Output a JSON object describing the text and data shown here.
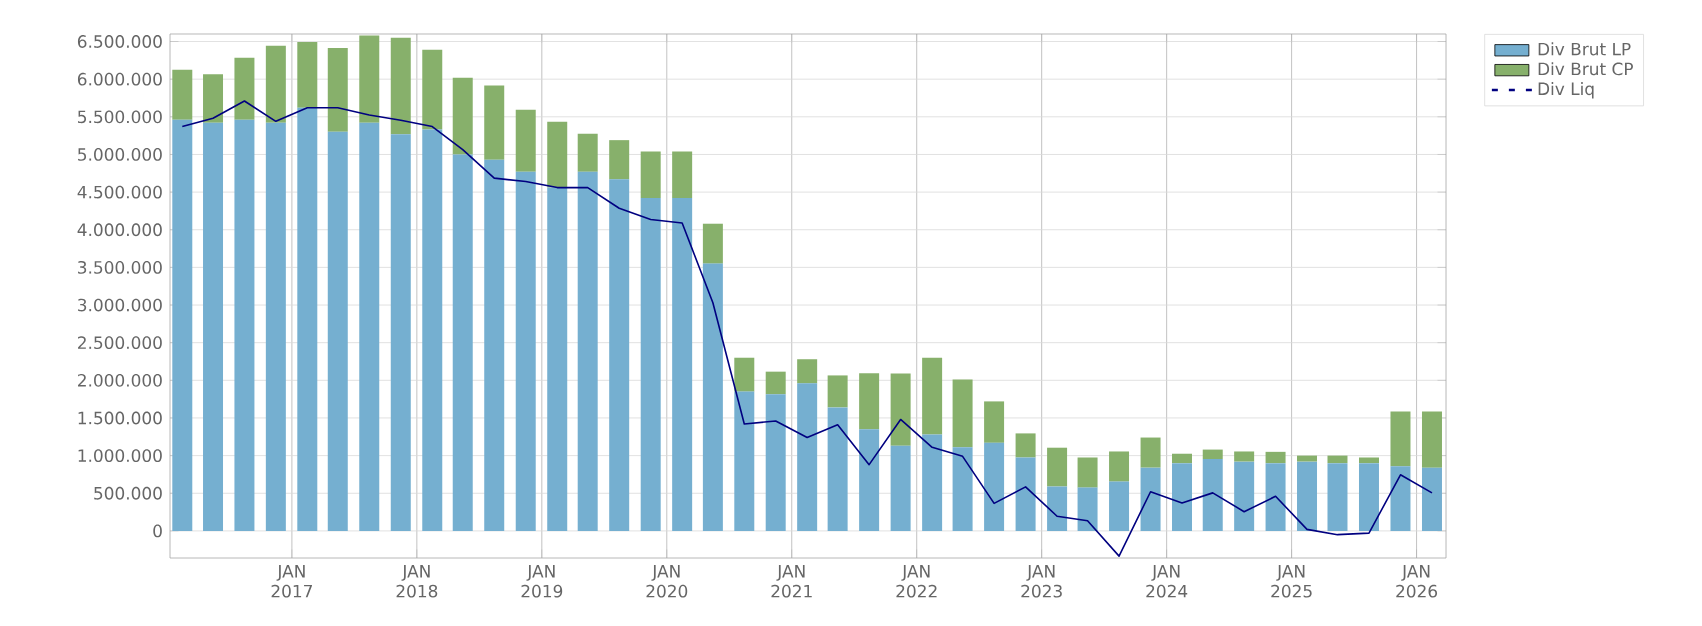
{
  "chart_data": {
    "type": "bar",
    "stacked": true,
    "grid": true,
    "legend": "top right",
    "x": [
      "2016-02-15",
      "2016-05-15",
      "2016-08-15",
      "2016-11-15",
      "2017-02-15",
      "2017-05-15",
      "2017-08-15",
      "2017-11-15",
      "2018-02-15",
      "2018-05-15",
      "2018-08-15",
      "2018-11-15",
      "2019-02-15",
      "2019-05-15",
      "2019-08-15",
      "2019-11-15",
      "2020-02-15",
      "2020-05-15",
      "2020-08-15",
      "2020-11-15",
      "2021-02-15",
      "2021-05-15",
      "2021-08-15",
      "2021-11-15",
      "2022-02-15",
      "2022-05-15",
      "2022-08-15",
      "2022-11-15",
      "2023-02-15",
      "2023-05-15",
      "2023-08-15",
      "2023-11-15",
      "2024-02-15",
      "2024-05-15",
      "2024-08-15",
      "2024-11-15",
      "2025-02-15",
      "2025-05-15",
      "2025-08-15",
      "2025-11-15",
      "2026-02-15"
    ],
    "xlim": [
      "2016-01-10",
      "2026-03-28"
    ],
    "xticks": [
      {
        "value": "2017-01-01",
        "label": "JAN 2017"
      },
      {
        "value": "2018-01-01",
        "label": "JAN 2018"
      },
      {
        "value": "2019-01-01",
        "label": "JAN 2019"
      },
      {
        "value": "2020-01-01",
        "label": "JAN 2020"
      },
      {
        "value": "2021-01-01",
        "label": "JAN 2021"
      },
      {
        "value": "2022-01-01",
        "label": "JAN 2022"
      },
      {
        "value": "2023-01-01",
        "label": "JAN 2023"
      },
      {
        "value": "2024-01-01",
        "label": "JAN 2024"
      },
      {
        "value": "2025-01-01",
        "label": "JAN 2025"
      },
      {
        "value": "2026-01-01",
        "label": "JAN 2026"
      }
    ],
    "ylim": [
      -360000,
      6600000
    ],
    "yticks": [
      0,
      {
        "value": 500000,
        "label": "500.000"
      },
      {
        "value": 1000000,
        "label": "1.000.000"
      },
      {
        "value": 1500000,
        "label": "1.500.000"
      },
      {
        "value": 2000000,
        "label": "2.000.000"
      },
      {
        "value": 2500000,
        "label": "2.500.000"
      },
      {
        "value": 3000000,
        "label": "3.000.000"
      },
      {
        "value": 3500000,
        "label": "3.500.000"
      },
      {
        "value": 4000000,
        "label": "4.000.000"
      },
      {
        "value": 4500000,
        "label": "4.500.000"
      },
      {
        "value": 5000000,
        "label": "5.000.000"
      },
      {
        "value": 5500000,
        "label": "5.500.000"
      },
      {
        "value": 6000000,
        "label": "6.000.000"
      },
      {
        "value": 6500000,
        "label": "6.500.000"
      }
    ],
    "series": [
      {
        "name": "Div Brut LP",
        "color": "#75afd0",
        "values": [
          5460000,
          5420000,
          5460000,
          5420000,
          5620000,
          5300000,
          5420000,
          5270000,
          5330000,
          5000000,
          4930000,
          4770000,
          4560000,
          4770000,
          4670000,
          4420000,
          4420000,
          3550000,
          1850000,
          1815000,
          1960000,
          1640000,
          1350000,
          1130000,
          1280000,
          1110000,
          1170000,
          975000,
          590000,
          575000,
          655000,
          840000,
          900000,
          955000,
          920000,
          900000,
          920000,
          900000,
          900000,
          860000,
          840000
        ]
      },
      {
        "name": "Div Brut CP",
        "color": "#87b06b",
        "values": [
          665000,
          645000,
          825000,
          1025000,
          875000,
          1115000,
          1160000,
          1280000,
          1060000,
          1020000,
          985000,
          825000,
          875000,
          505000,
          520000,
          620000,
          620000,
          530000,
          450000,
          300000,
          320000,
          425000,
          745000,
          960000,
          1020000,
          900000,
          550000,
          320000,
          515000,
          400000,
          400000,
          400000,
          125000,
          125000,
          135000,
          150000,
          80000,
          100000,
          75000,
          725000,
          745000
        ]
      },
      {
        "name": "Div Liq",
        "type": "line",
        "color": "#000080",
        "values": [
          5370000,
          5480000,
          5710000,
          5440000,
          5620000,
          5620000,
          5525000,
          5455000,
          5370000,
          5065000,
          4685000,
          4640000,
          4560000,
          4560000,
          4285000,
          4135000,
          4090000,
          3030000,
          1420000,
          1460000,
          1240000,
          1410000,
          880000,
          1480000,
          1110000,
          990000,
          365000,
          585000,
          195000,
          135000,
          -335000,
          520000,
          370000,
          505000,
          255000,
          460000,
          20000,
          -50000,
          -30000,
          745000,
          505000
        ]
      }
    ]
  }
}
